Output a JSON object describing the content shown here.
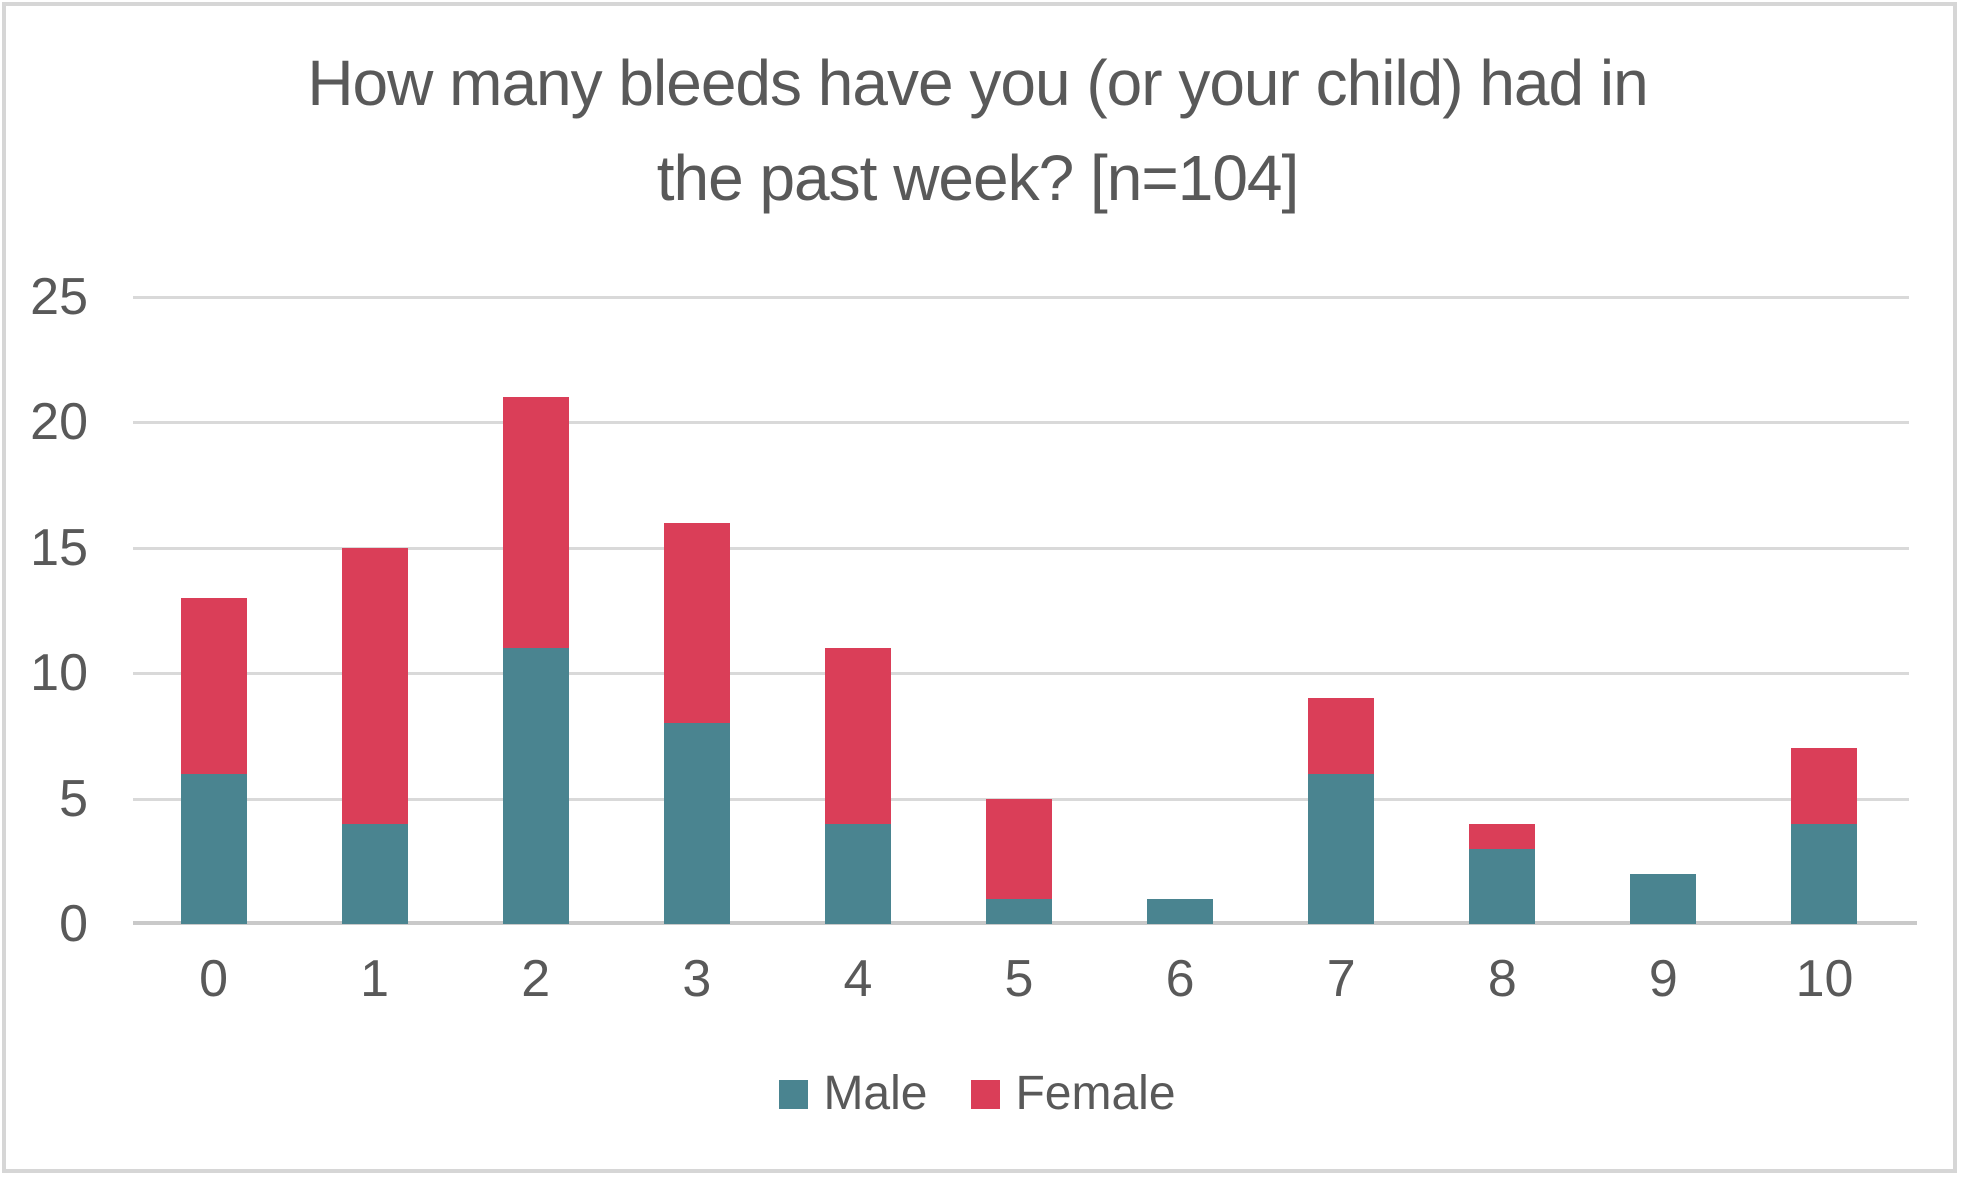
{
  "title": {
    "line1": "How many bleeds have you (or your child) had in",
    "line2": "the past week? [n=104]"
  },
  "legend": {
    "male_label": "Male",
    "female_label": "Female"
  },
  "colors": {
    "male": "#4A8490",
    "female": "#DA3E58",
    "text": "#595959",
    "gridline": "#D9D9D9",
    "axis_line": "#C9C9C9",
    "frame_border": "#D6D6D6"
  },
  "chart_data": {
    "type": "bar",
    "stacked": true,
    "title": "How many bleeds have you (or your child) had in the past week? [n=104]",
    "xlabel": "",
    "ylabel": "",
    "categories": [
      "0",
      "1",
      "2",
      "3",
      "4",
      "5",
      "6",
      "7",
      "8",
      "9",
      "10"
    ],
    "series": [
      {
        "name": "Male",
        "color": "#4A8490",
        "values": [
          6,
          4,
          11,
          8,
          4,
          1,
          1,
          6,
          3,
          2,
          4
        ]
      },
      {
        "name": "Female",
        "color": "#DA3E58",
        "values": [
          7,
          11,
          10,
          8,
          7,
          4,
          0,
          3,
          1,
          0,
          3
        ]
      }
    ],
    "totals": [
      13,
      15,
      21,
      16,
      11,
      5,
      1,
      9,
      4,
      2,
      7
    ],
    "n_total": 104,
    "ylim": [
      0,
      25
    ],
    "yticks": [
      0,
      5,
      10,
      15,
      20,
      25
    ],
    "grid": true,
    "legend_position": "bottom"
  }
}
